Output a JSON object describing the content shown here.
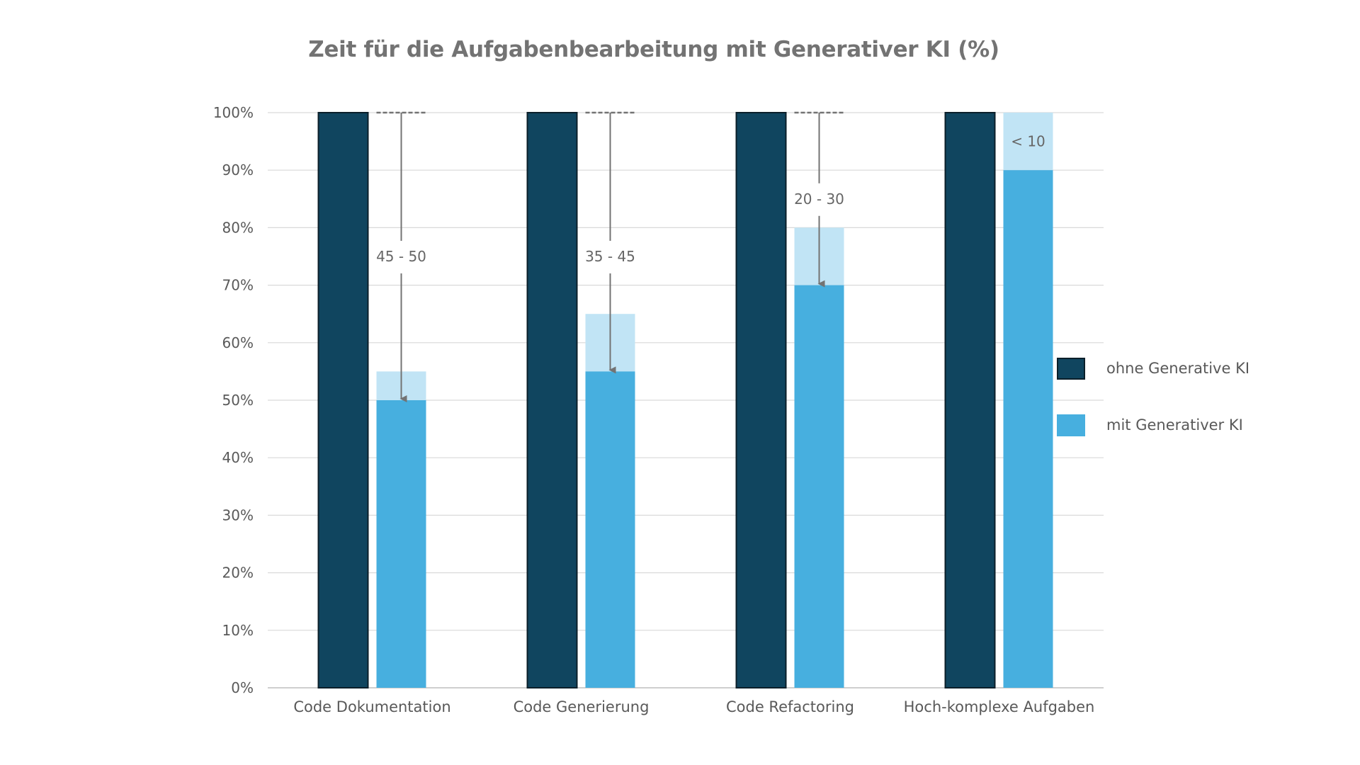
{
  "chart_data": {
    "type": "bar",
    "title": "Zeit für die Aufgabenbearbeitung mit Generativer KI (%)",
    "categories": [
      "Code Dokumentation",
      "Code Generierung",
      "Code Refactoring",
      "Hoch-komplexe Aufgaben"
    ],
    "ylim": [
      0,
      100
    ],
    "yticks": [
      "0%",
      "10%",
      "20%",
      "30%",
      "40%",
      "50%",
      "60%",
      "70%",
      "80%",
      "90%",
      "100%"
    ],
    "grid": true,
    "legend_position": "right",
    "series": [
      {
        "name": "ohne Generative KI",
        "values": [
          100,
          100,
          100,
          100
        ],
        "color": "#10455F"
      },
      {
        "name": "mit Generativer KI",
        "values": [
          50,
          55,
          70,
          90
        ],
        "range_top": [
          55,
          65,
          80,
          100
        ],
        "color": "#47AFDF",
        "range_color": "#C1E4F5"
      }
    ],
    "annotations": [
      {
        "category": "Code Dokumentation",
        "label": "45 - 50",
        "arrow": true
      },
      {
        "category": "Code Generierung",
        "label": "35 - 45",
        "arrow": true
      },
      {
        "category": "Code Refactoring",
        "label": "20 - 30",
        "arrow": true
      },
      {
        "category": "Hoch-komplexe Aufgaben",
        "label": "< 10",
        "arrow": false
      }
    ]
  }
}
